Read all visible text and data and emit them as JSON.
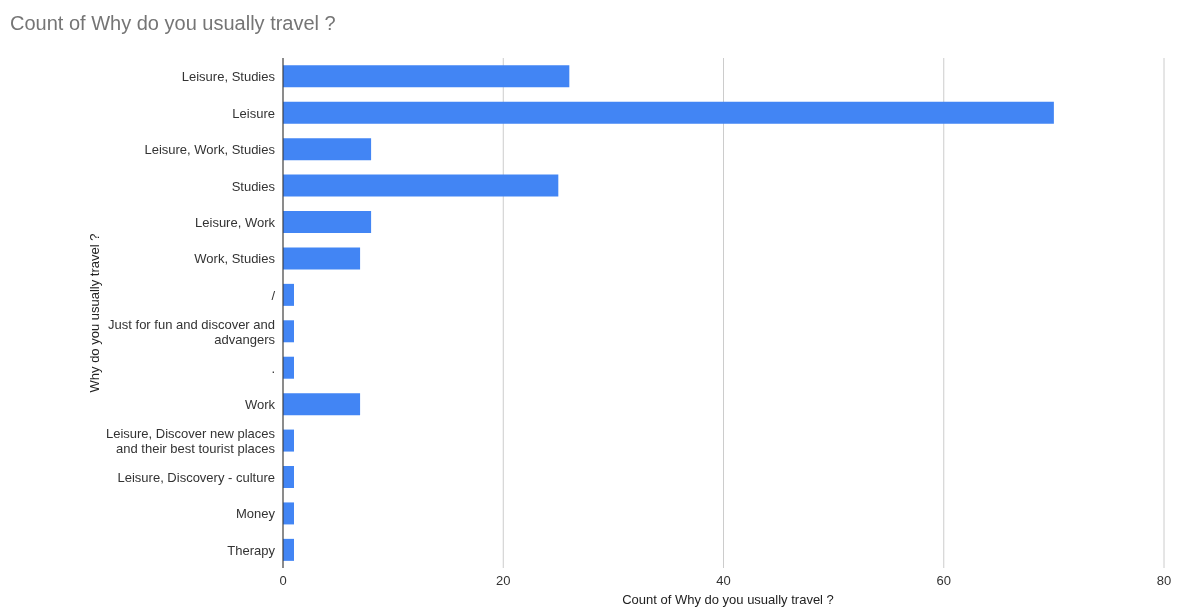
{
  "chart_data": {
    "type": "bar",
    "orientation": "horizontal",
    "title": "Count of Why do you usually travel ?",
    "xlabel": "Count of Why do you usually travel ?",
    "ylabel": "Why do you usually travel ?",
    "categories": [
      "Leisure, Studies",
      "Leisure",
      "Leisure, Work, Studies",
      "Studies",
      "Leisure, Work",
      "Work, Studies",
      "/",
      "Just for fun and discover and advangers",
      ".",
      "Work",
      "Leisure, Discover new places and their best tourist places",
      "Leisure, Discovery - culture",
      "Money",
      "Therapy"
    ],
    "values": [
      26,
      70,
      8,
      25,
      8,
      7,
      1,
      1,
      1,
      7,
      1,
      1,
      1,
      1
    ],
    "color": "#4285f4",
    "xlim": [
      0,
      80
    ],
    "xticks": [
      0,
      20,
      40,
      60,
      80
    ],
    "grid": "x",
    "legend": false
  }
}
